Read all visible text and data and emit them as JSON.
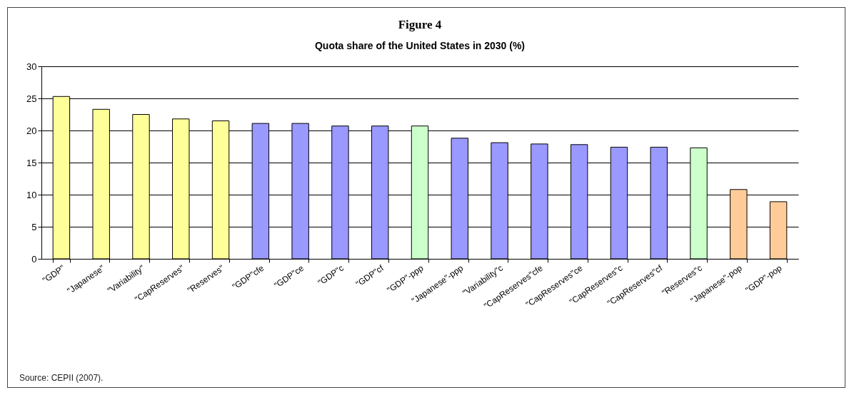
{
  "chart_data": {
    "type": "bar",
    "title": "Figure 4",
    "subtitle": "Quota share of the United States in 2030 (%)",
    "categories": [
      "\"GDP\"",
      "\"Japanese\"",
      "\"Variability\"",
      "\"CapReserves\"",
      "\"Reserves\"",
      "\"GDP\"cfe",
      "\"GDP\"ce",
      "\"GDP\"c",
      "\"GDP\"cf",
      "\"GDP\"-ppp",
      "\"Japanese\"-ppp",
      "\"Variability\"c",
      "\"CapReserves\"cfe",
      "\"CapReserves\"ce",
      "\"CapReserves\"c",
      "\"CapReserves\"cf",
      "\"Reserves\"c",
      "\"Japanese\"-pop",
      "\"GDP\"-pop"
    ],
    "values": [
      25.3,
      23.3,
      22.5,
      21.8,
      21.5,
      21.1,
      21.1,
      20.7,
      20.7,
      20.7,
      18.8,
      18.1,
      17.9,
      17.8,
      17.4,
      17.4,
      17.3,
      10.8,
      8.9
    ],
    "colors": [
      "#ffff99",
      "#ffff99",
      "#ffff99",
      "#ffff99",
      "#ffff99",
      "#9999ff",
      "#9999ff",
      "#9999ff",
      "#9999ff",
      "#ccffcc",
      "#9999ff",
      "#9999ff",
      "#9999ff",
      "#9999ff",
      "#9999ff",
      "#9999ff",
      "#ccffcc",
      "#ffcc99",
      "#ffcc99"
    ],
    "ylim": [
      0,
      30
    ],
    "yticks": [
      0,
      5,
      10,
      15,
      20,
      25,
      30
    ],
    "grid": "y",
    "legend": false,
    "annotations": [
      "Source: CEPII (2007)."
    ]
  }
}
